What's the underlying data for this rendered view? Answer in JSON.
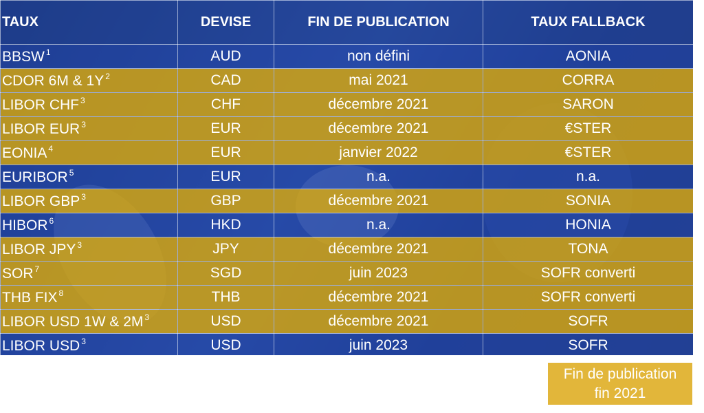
{
  "colors": {
    "header_blue": "#213e8c",
    "row_gold": "#cda014",
    "row_blue": "#2242a0",
    "legend_gold": "#e2b63a",
    "text": "#ffffff"
  },
  "table": {
    "headers": [
      "TAUX",
      "DEVISE",
      "FIN DE PUBLICATION",
      "TAUX FALLBACK"
    ],
    "rows": [
      {
        "taux": "BBSW",
        "note": "1",
        "devise": "AUD",
        "fin": "non défini",
        "fallback": "AONIA",
        "style": "blue"
      },
      {
        "taux": "CDOR 6M & 1Y",
        "note": "2",
        "devise": "CAD",
        "fin": "mai 2021",
        "fallback": "CORRA",
        "style": "gold"
      },
      {
        "taux": "LIBOR CHF",
        "note": "3",
        "devise": "CHF",
        "fin": "décembre 2021",
        "fallback": "SARON",
        "style": "gold"
      },
      {
        "taux": "LIBOR EUR",
        "note": "3",
        "devise": "EUR",
        "fin": "décembre 2021",
        "fallback": "€STER",
        "style": "gold"
      },
      {
        "taux": "EONIA",
        "note": "4",
        "devise": "EUR",
        "fin": "janvier 2022",
        "fallback": "€STER",
        "style": "gold"
      },
      {
        "taux": "EURIBOR",
        "note": "5",
        "devise": "EUR",
        "fin": "n.a.",
        "fallback": "n.a.",
        "style": "blue"
      },
      {
        "taux": "LIBOR GBP",
        "note": "3",
        "devise": "GBP",
        "fin": "décembre 2021",
        "fallback": "SONIA",
        "style": "gold"
      },
      {
        "taux": "HIBOR",
        "note": "6",
        "devise": "HKD",
        "fin": "n.a.",
        "fallback": "HONIA",
        "style": "blue"
      },
      {
        "taux": "LIBOR JPY",
        "note": "3",
        "devise": "JPY",
        "fin": "décembre 2021",
        "fallback": "TONA",
        "style": "gold"
      },
      {
        "taux": "SOR",
        "note": "7",
        "devise": "SGD",
        "fin": "juin 2023",
        "fallback": "SOFR converti",
        "style": "gold"
      },
      {
        "taux": "THB FIX",
        "note": "8",
        "devise": "THB",
        "fin": "décembre 2021",
        "fallback": "SOFR converti",
        "style": "gold"
      },
      {
        "taux": "LIBOR USD 1W & 2M",
        "note": "3",
        "devise": "USD",
        "fin": "décembre 2021",
        "fallback": "SOFR",
        "style": "gold"
      },
      {
        "taux": "LIBOR USD",
        "note": "3",
        "devise": "USD",
        "fin": "juin 2023",
        "fallback": "SOFR",
        "style": "blue"
      }
    ]
  },
  "legend": {
    "line1": "Fin de publication",
    "line2": "fin 2021"
  }
}
